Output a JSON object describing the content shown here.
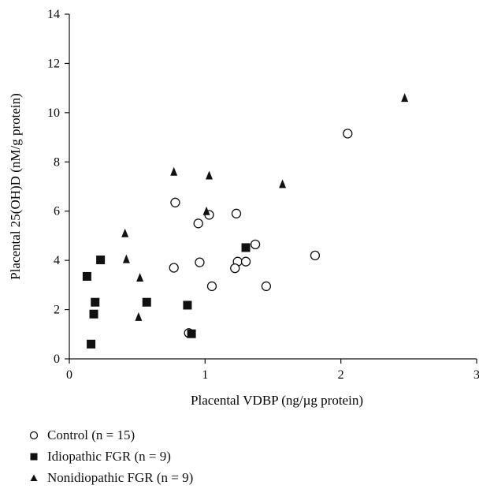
{
  "chart_data": {
    "type": "scatter",
    "xlabel": "Placental VDBP (ng/µg protein)",
    "ylabel": "Placental 25(OH)D (nM/g protein)",
    "xlim": [
      0,
      3
    ],
    "ylim": [
      0,
      14
    ],
    "x_ticks": [
      "0",
      "1",
      "2",
      "3"
    ],
    "y_ticks": [
      "0",
      "2",
      "4",
      "6",
      "8",
      "10",
      "12",
      "14"
    ],
    "grid": false,
    "legend_position": "bottom",
    "series": [
      {
        "name": "Control (n = 15)",
        "marker": "open-circle",
        "color": "#111111",
        "points": [
          [
            0.78,
            6.35
          ],
          [
            0.95,
            5.5
          ],
          [
            1.03,
            5.85
          ],
          [
            1.23,
            5.9
          ],
          [
            1.37,
            4.65
          ],
          [
            0.77,
            3.7
          ],
          [
            0.96,
            3.92
          ],
          [
            1.24,
            3.95
          ],
          [
            1.3,
            3.95
          ],
          [
            1.22,
            3.68
          ],
          [
            1.05,
            2.95
          ],
          [
            1.45,
            2.95
          ],
          [
            1.81,
            4.2
          ],
          [
            2.05,
            9.15
          ],
          [
            0.88,
            1.05
          ]
        ]
      },
      {
        "name": "Idiopathic FGR (n = 9)",
        "marker": "filled-square",
        "color": "#111111",
        "points": [
          [
            0.13,
            3.35
          ],
          [
            0.23,
            4.02
          ],
          [
            0.19,
            2.3
          ],
          [
            0.18,
            1.82
          ],
          [
            0.16,
            0.6
          ],
          [
            0.57,
            2.3
          ],
          [
            0.87,
            2.18
          ],
          [
            0.9,
            1.02
          ],
          [
            1.3,
            4.52
          ]
        ]
      },
      {
        "name": "Nonidiopathic FGR (n = 9)",
        "marker": "filled-triangle",
        "color": "#111111",
        "points": [
          [
            0.41,
            5.1
          ],
          [
            0.42,
            4.05
          ],
          [
            0.52,
            3.3
          ],
          [
            0.51,
            1.7
          ],
          [
            0.77,
            7.6
          ],
          [
            1.03,
            7.45
          ],
          [
            1.01,
            6.0
          ],
          [
            1.57,
            7.1
          ],
          [
            2.47,
            10.6
          ]
        ]
      }
    ]
  }
}
